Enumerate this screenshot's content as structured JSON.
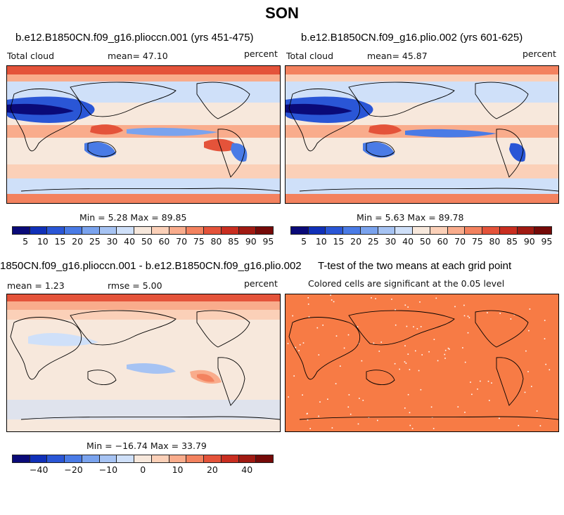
{
  "title": "SON",
  "colors": {
    "scale": [
      "#0a0a78",
      "#1030b8",
      "#2a56d6",
      "#4a7be6",
      "#7aa3ee",
      "#a6c3f3",
      "#cfe0f9",
      "#f7e8dc",
      "#fbd0b8",
      "#f9ac8c",
      "#f3825f",
      "#e4533a",
      "#c92e20",
      "#a01a12",
      "#750a08"
    ],
    "land_outline": "#000000",
    "significant_fill": "#f77b45"
  },
  "panels": [
    {
      "id": "p1",
      "title": "b.e12.B1850CN.f09_g16.plioccn.001 (yrs 451-475)",
      "left_label": "Total cloud",
      "mid_label": "mean=  47.10",
      "right_label": "percent",
      "stats": "Min =    5.28 Max =  89.85",
      "colorbar_ticks": [
        "5",
        "10",
        "15",
        "20",
        "25",
        "30",
        "40",
        "50",
        "60",
        "70",
        "75",
        "80",
        "85",
        "90",
        "95"
      ]
    },
    {
      "id": "p2",
      "title": "b.e12.B1850CN.f09_g16.plio.002 (yrs 601-625)",
      "left_label": "Total cloud",
      "mid_label": "mean=  45.87",
      "right_label": "percent",
      "stats": "Min =    5.63 Max =  89.78",
      "colorbar_ticks": [
        "5",
        "10",
        "15",
        "20",
        "25",
        "30",
        "40",
        "50",
        "60",
        "70",
        "75",
        "80",
        "85",
        "90",
        "95"
      ]
    },
    {
      "id": "p3",
      "title": "1850CN.f09_g16.plioccn.001 - b.e12.B1850CN.f09_g16.plio.002",
      "left_label": "mean =   1.23",
      "mid_label": "rmse =    5.00",
      "right_label": "percent",
      "stats": "Min = −16.74 Max =  33.79",
      "colorbar_ticks": [
        "−40",
        "−20",
        "−10",
        "0",
        "10",
        "20",
        "40"
      ]
    },
    {
      "id": "p4",
      "title": "T-test of the two means at each grid point",
      "left_label": "Colored cells are significant at the 0.05 level"
    }
  ],
  "chart_data": [
    {
      "type": "heatmap",
      "title": "b.e12.B1850CN.f09_g16.plioccn.001 (yrs 451-475)",
      "variable": "Total cloud",
      "units": "percent",
      "mean": 47.1,
      "min": 5.28,
      "max": 89.85,
      "contour_levels": [
        5,
        10,
        15,
        20,
        25,
        30,
        40,
        50,
        60,
        70,
        75,
        80,
        85,
        90,
        95
      ]
    },
    {
      "type": "heatmap",
      "title": "b.e12.B1850CN.f09_g16.plio.002 (yrs 601-625)",
      "variable": "Total cloud",
      "units": "percent",
      "mean": 45.87,
      "min": 5.63,
      "max": 89.78,
      "contour_levels": [
        5,
        10,
        15,
        20,
        25,
        30,
        40,
        50,
        60,
        70,
        75,
        80,
        85,
        90,
        95
      ]
    },
    {
      "type": "heatmap",
      "title": "1850CN.f09_g16.plioccn.001 - b.e12.B1850CN.f09_g16.plio.002",
      "units": "percent",
      "mean": 1.23,
      "rmse": 5.0,
      "min": -16.74,
      "max": 33.79,
      "colorbar_tick_labels": [
        -40,
        -20,
        -10,
        0,
        10,
        20,
        40
      ]
    },
    {
      "type": "heatmap",
      "title": "T-test of the two means at each grid point",
      "significance_level": 0.05
    }
  ]
}
